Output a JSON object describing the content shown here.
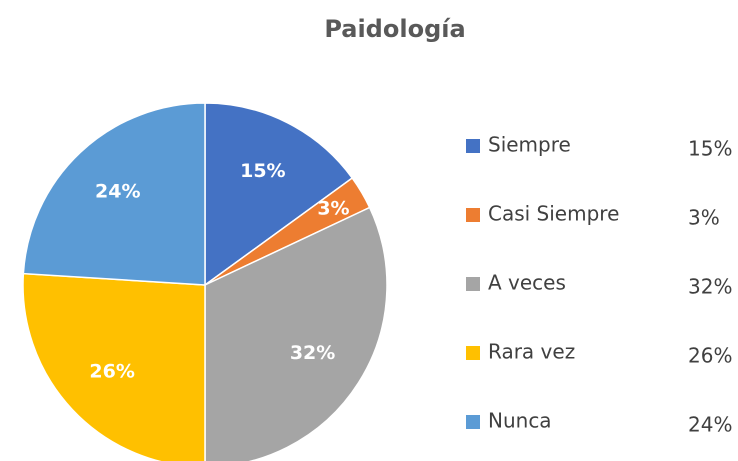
{
  "chart_data": {
    "type": "pie",
    "title": "Paidología",
    "categories": [
      "Siempre",
      "Casi Siempre",
      "A veces",
      "Rara vez",
      "Nunca"
    ],
    "values": [
      15,
      3,
      32,
      26,
      24
    ],
    "value_labels": [
      "15%",
      "3%",
      "32%",
      "26%",
      "24%"
    ],
    "colors": [
      "#4472c4",
      "#ed7d31",
      "#a5a5a5",
      "#ffc000",
      "#5b9bd5"
    ],
    "legend": "right"
  }
}
